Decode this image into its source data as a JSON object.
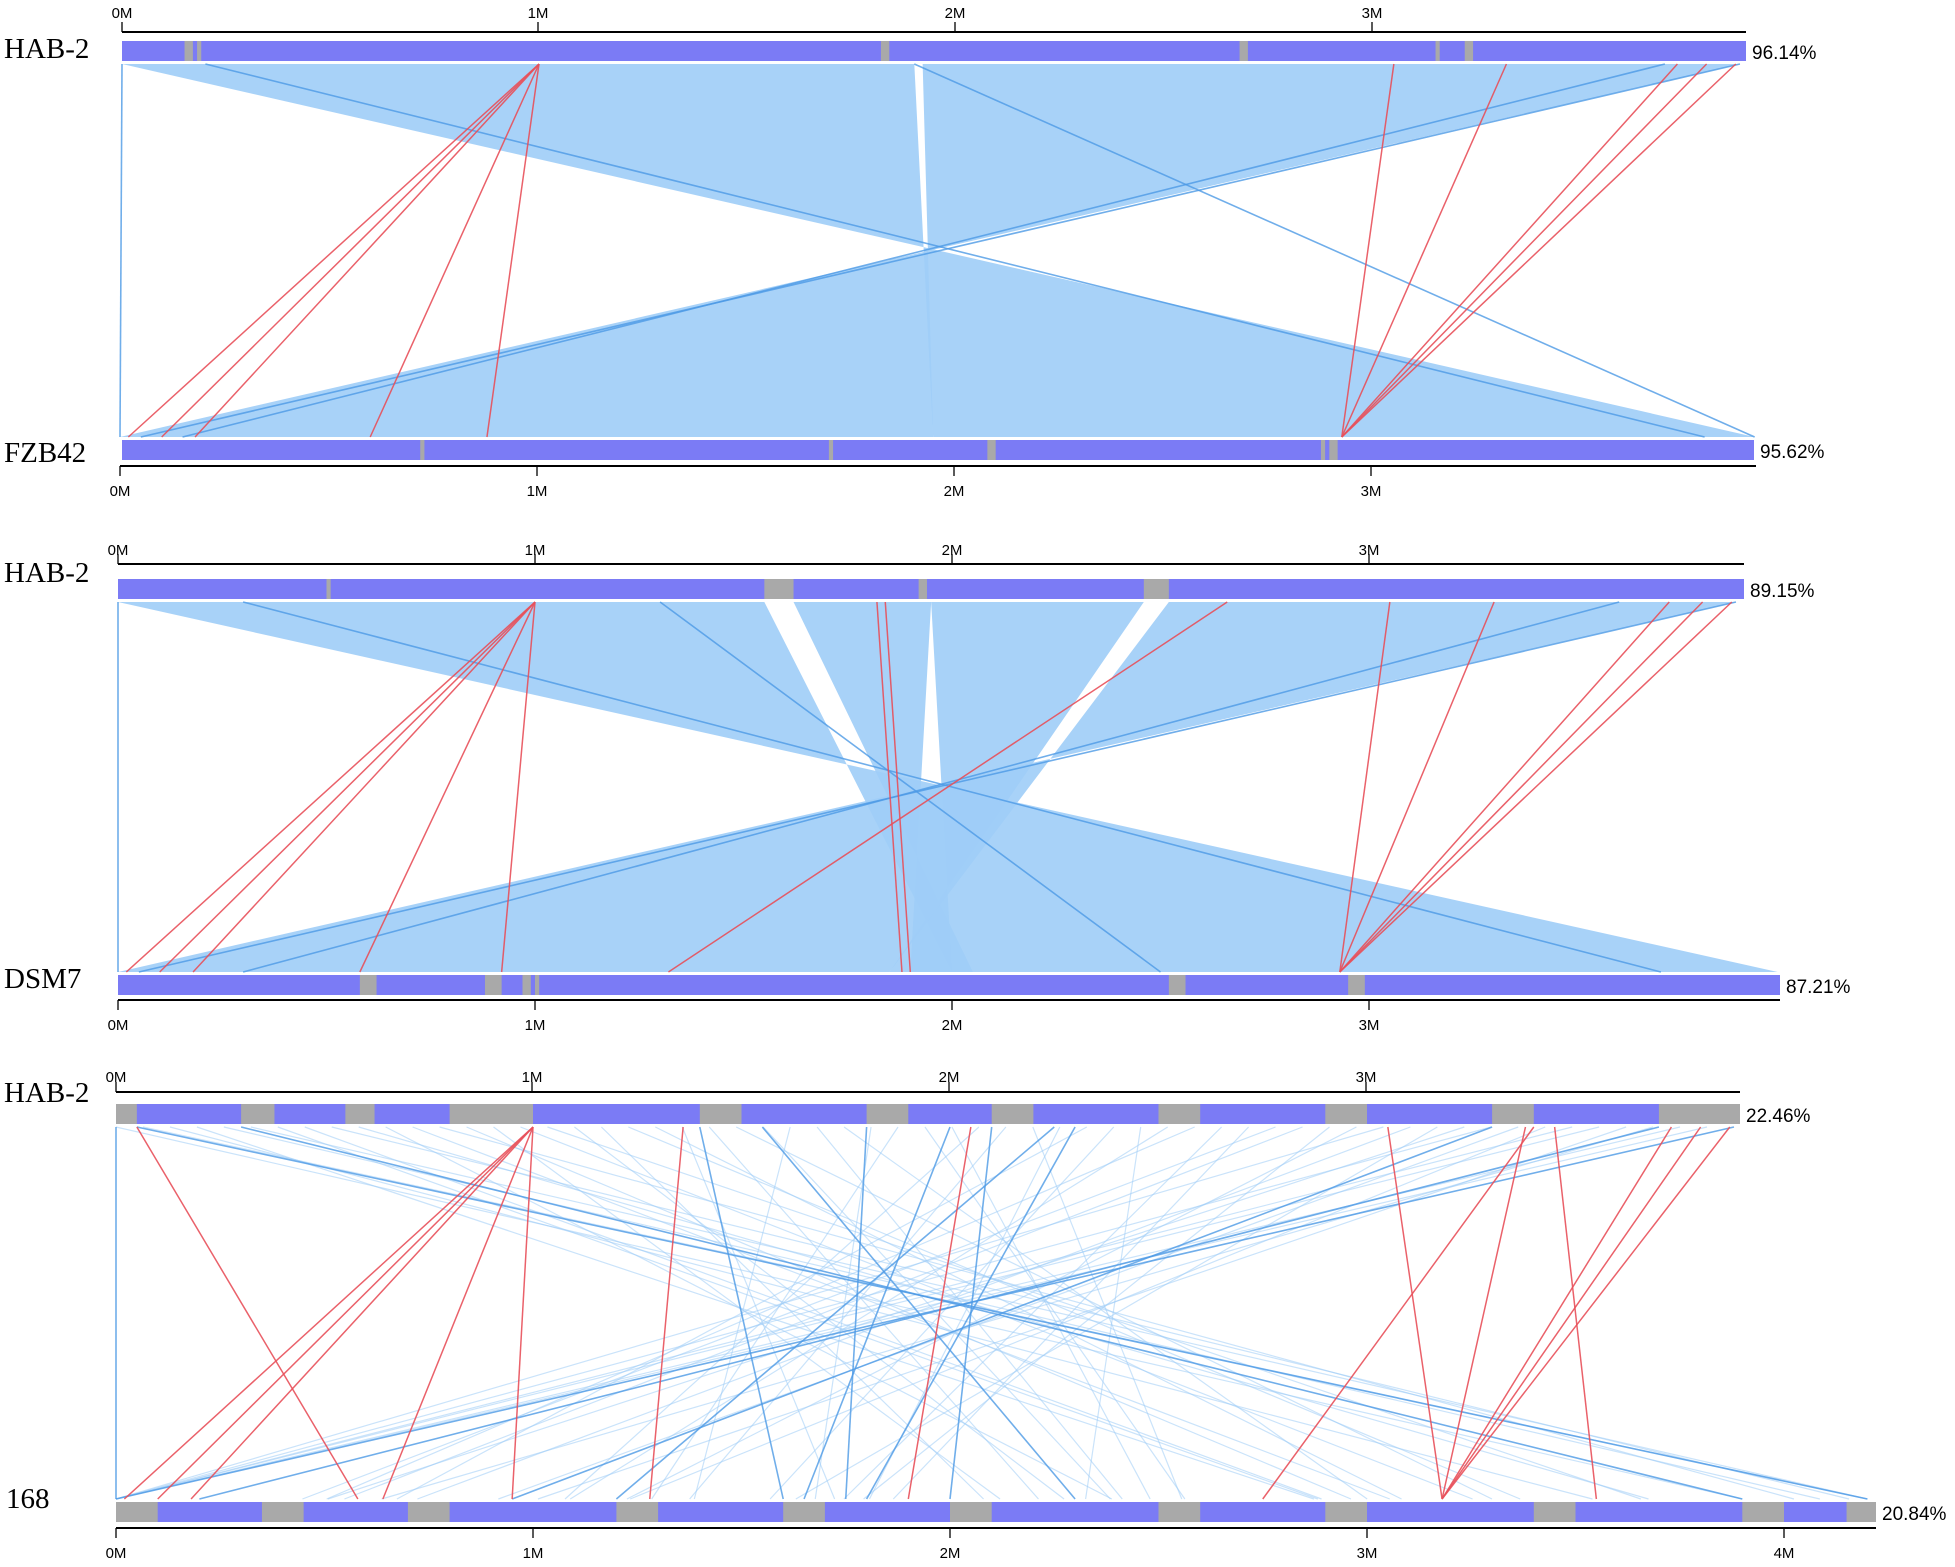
{
  "colors": {
    "aligned": "#7b7bf5",
    "unaligned": "#a9a9a9",
    "collinear_block": "#9fcdf7",
    "collinear_line": "#4d9ae6",
    "inverted_line": "#e8505a"
  },
  "comparisons": [
    {
      "reference": {
        "name": "HAB-2",
        "percent": "96.14%",
        "ticks": [
          "0M",
          "1M",
          "2M",
          "3M"
        ],
        "length_mb": 3.9
      },
      "query": {
        "name": "FZB42",
        "percent": "95.62%",
        "ticks": [
          "0M",
          "1M",
          "2M",
          "3M"
        ],
        "length_mb": 3.92
      },
      "unaligned_ref_mb": [
        [
          0.15,
          0.17
        ],
        [
          0.18,
          0.19
        ],
        [
          1.82,
          1.84
        ],
        [
          2.68,
          2.7
        ],
        [
          3.15,
          3.16
        ],
        [
          3.22,
          3.24
        ]
      ],
      "unaligned_query_mb": [
        [
          0.72,
          0.73
        ],
        [
          1.7,
          1.71
        ],
        [
          2.08,
          2.1
        ],
        [
          2.88,
          2.89
        ],
        [
          2.9,
          2.92
        ]
      ],
      "blocks": [
        {
          "r": [
            0.0,
            1.9
          ],
          "q": [
            1.95,
            3.92
          ]
        },
        {
          "r": [
            1.92,
            3.88
          ],
          "q": [
            0.0,
            1.95
          ]
        }
      ],
      "inversions": [
        {
          "r": 1.0,
          "q": 0.02
        },
        {
          "r": 1.0,
          "q": 0.1
        },
        {
          "r": 1.0,
          "q": 0.18
        },
        {
          "r": 1.0,
          "q": 0.6
        },
        {
          "r": 1.0,
          "q": 0.88
        },
        {
          "r": 3.05,
          "q": 2.93
        },
        {
          "r": 3.32,
          "q": 2.93
        },
        {
          "r": 3.73,
          "q": 2.93
        },
        {
          "r": 3.8,
          "q": 2.93
        },
        {
          "r": 3.87,
          "q": 2.93
        }
      ],
      "collinear": [
        {
          "r": 0.0,
          "q": 0.0
        },
        {
          "r": 0.2,
          "q": 3.8
        },
        {
          "r": 3.88,
          "q": 0.05
        },
        {
          "r": 3.7,
          "q": 0.15
        },
        {
          "r": 1.9,
          "q": 3.92
        }
      ]
    },
    {
      "reference": {
        "name": "HAB-2",
        "percent": "89.15%",
        "ticks": [
          "0M",
          "1M",
          "2M",
          "3M"
        ],
        "length_mb": 3.9
      },
      "query": {
        "name": "DSM7",
        "percent": "87.21%",
        "ticks": [
          "0M",
          "1M",
          "2M",
          "3M"
        ],
        "length_mb": 3.98
      },
      "unaligned_ref_mb": [
        [
          1.55,
          1.62
        ],
        [
          2.46,
          2.52
        ],
        [
          0.5,
          0.51
        ],
        [
          1.92,
          1.94
        ]
      ],
      "unaligned_query_mb": [
        [
          0.58,
          0.62
        ],
        [
          0.88,
          0.92
        ],
        [
          0.97,
          0.99
        ],
        [
          2.52,
          2.56
        ],
        [
          2.95,
          2.99
        ],
        [
          1.0,
          1.01
        ]
      ],
      "blocks": [
        {
          "r": [
            0.0,
            1.55
          ],
          "q": [
            2.0,
            3.98
          ]
        },
        {
          "r": [
            1.62,
            1.95
          ],
          "q": [
            1.9,
            2.05
          ]
        },
        {
          "r": [
            1.95,
            2.46
          ],
          "q": [
            1.85,
            2.0
          ]
        },
        {
          "r": [
            2.52,
            3.88
          ],
          "q": [
            0.0,
            1.85
          ]
        }
      ],
      "inversions": [
        {
          "r": 1.0,
          "q": 0.02
        },
        {
          "r": 1.0,
          "q": 0.1
        },
        {
          "r": 1.0,
          "q": 0.18
        },
        {
          "r": 1.0,
          "q": 0.58
        },
        {
          "r": 1.0,
          "q": 0.92
        },
        {
          "r": 1.82,
          "q": 1.88
        },
        {
          "r": 1.84,
          "q": 1.9
        },
        {
          "r": 2.66,
          "q": 1.32
        },
        {
          "r": 3.05,
          "q": 2.93
        },
        {
          "r": 3.3,
          "q": 2.93
        },
        {
          "r": 3.72,
          "q": 2.93
        },
        {
          "r": 3.8,
          "q": 2.93
        },
        {
          "r": 3.87,
          "q": 2.93
        }
      ],
      "collinear": [
        {
          "r": 0.0,
          "q": 0.0
        },
        {
          "r": 0.3,
          "q": 3.7
        },
        {
          "r": 3.88,
          "q": 0.05
        },
        {
          "r": 3.6,
          "q": 0.3
        },
        {
          "r": 1.3,
          "q": 2.5
        }
      ]
    },
    {
      "reference": {
        "name": "HAB-2",
        "percent": "22.46%",
        "ticks": [
          "0M",
          "1M",
          "2M",
          "3M"
        ],
        "length_mb": 3.9
      },
      "query": {
        "name": "168",
        "percent": "20.84%",
        "ticks": [
          "0M",
          "1M",
          "2M",
          "3M",
          "4M"
        ],
        "length_mb": 4.22
      },
      "unaligned_ref_mb": [
        [
          0.05,
          0.3
        ],
        [
          0.38,
          0.55
        ],
        [
          0.62,
          0.8
        ],
        [
          1.0,
          1.4
        ],
        [
          1.5,
          1.8
        ],
        [
          1.9,
          2.1
        ],
        [
          2.2,
          2.5
        ],
        [
          2.6,
          2.9
        ],
        [
          3.0,
          3.3
        ],
        [
          3.4,
          3.7
        ]
      ],
      "unaligned_query_mb": [
        [
          0.1,
          0.35
        ],
        [
          0.45,
          0.7
        ],
        [
          0.8,
          1.2
        ],
        [
          1.3,
          1.6
        ],
        [
          1.7,
          2.0
        ],
        [
          2.1,
          2.5
        ],
        [
          2.6,
          2.9
        ],
        [
          3.0,
          3.4
        ],
        [
          3.5,
          3.9
        ],
        [
          4.0,
          4.15
        ]
      ],
      "blocks": [],
      "inversions": [
        {
          "r": 1.0,
          "q": 0.02
        },
        {
          "r": 1.0,
          "q": 0.1
        },
        {
          "r": 1.0,
          "q": 0.18
        },
        {
          "r": 1.0,
          "q": 0.64
        },
        {
          "r": 1.0,
          "q": 0.95
        },
        {
          "r": 1.36,
          "q": 1.28
        },
        {
          "r": 0.05,
          "q": 0.58
        },
        {
          "r": 2.05,
          "q": 1.9
        },
        {
          "r": 3.05,
          "q": 3.18
        },
        {
          "r": 3.38,
          "q": 3.18
        },
        {
          "r": 3.73,
          "q": 3.18
        },
        {
          "r": 3.8,
          "q": 3.18
        },
        {
          "r": 3.87,
          "q": 3.18
        },
        {
          "r": 3.4,
          "q": 2.75
        },
        {
          "r": 3.45,
          "q": 3.55
        }
      ],
      "collinear": [
        {
          "r": 0.0,
          "q": 0.0
        },
        {
          "r": 3.88,
          "q": 0.0
        },
        {
          "r": 3.7,
          "q": 0.2
        },
        {
          "r": 0.05,
          "q": 4.2
        },
        {
          "r": 1.4,
          "q": 1.6
        },
        {
          "r": 1.8,
          "q": 1.75
        },
        {
          "r": 2.1,
          "q": 2.0
        },
        {
          "r": 2.3,
          "q": 1.8
        },
        {
          "r": 3.3,
          "q": 0.95
        },
        {
          "r": 0.3,
          "q": 3.9
        },
        {
          "r": 1.55,
          "q": 2.3
        },
        {
          "r": 2.25,
          "q": 1.2
        },
        {
          "r": 2.0,
          "q": 1.65
        }
      ]
    }
  ]
}
